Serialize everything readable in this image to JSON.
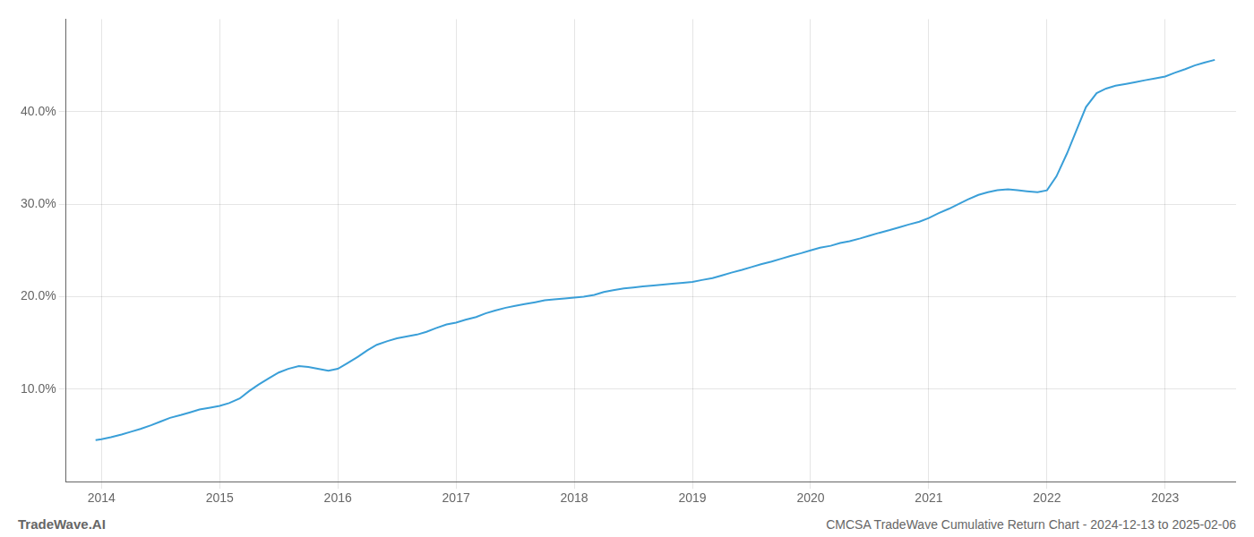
{
  "chart_data": {
    "type": "line",
    "title": "CMCSA TradeWave Cumulative Return Chart - 2024-12-13 to 2025-02-06",
    "annotations": [
      "TradeWave.AI"
    ],
    "x": [
      2013.95,
      2014.0,
      2014.08,
      2014.17,
      2014.25,
      2014.33,
      2014.42,
      2014.5,
      2014.58,
      2014.67,
      2014.75,
      2014.83,
      2014.92,
      2015.0,
      2015.08,
      2015.17,
      2015.25,
      2015.33,
      2015.42,
      2015.5,
      2015.58,
      2015.67,
      2015.75,
      2015.83,
      2015.92,
      2016.0,
      2016.08,
      2016.17,
      2016.25,
      2016.33,
      2016.42,
      2016.5,
      2016.58,
      2016.67,
      2016.75,
      2016.83,
      2016.92,
      2017.0,
      2017.08,
      2017.17,
      2017.25,
      2017.33,
      2017.42,
      2017.5,
      2017.58,
      2017.67,
      2017.75,
      2017.83,
      2017.92,
      2018.0,
      2018.08,
      2018.17,
      2018.25,
      2018.33,
      2018.42,
      2018.5,
      2018.58,
      2018.67,
      2018.75,
      2018.83,
      2018.92,
      2019.0,
      2019.08,
      2019.17,
      2019.25,
      2019.33,
      2019.42,
      2019.5,
      2019.58,
      2019.67,
      2019.75,
      2019.83,
      2019.92,
      2020.0,
      2020.08,
      2020.17,
      2020.25,
      2020.33,
      2020.42,
      2020.5,
      2020.58,
      2020.67,
      2020.75,
      2020.83,
      2020.92,
      2021.0,
      2021.08,
      2021.17,
      2021.25,
      2021.33,
      2021.42,
      2021.5,
      2021.58,
      2021.67,
      2021.75,
      2021.83,
      2021.92,
      2022.0,
      2022.08,
      2022.17,
      2022.25,
      2022.33,
      2022.42,
      2022.5,
      2022.58,
      2022.67,
      2022.75,
      2022.83,
      2022.92,
      2023.0,
      2023.08,
      2023.17,
      2023.25,
      2023.33,
      2023.42
    ],
    "values": [
      4.5,
      4.6,
      4.8,
      5.1,
      5.4,
      5.7,
      6.1,
      6.5,
      6.9,
      7.2,
      7.5,
      7.8,
      8.0,
      8.2,
      8.5,
      9.0,
      9.8,
      10.5,
      11.2,
      11.8,
      12.2,
      12.5,
      12.4,
      12.2,
      12.0,
      12.2,
      12.8,
      13.5,
      14.2,
      14.8,
      15.2,
      15.5,
      15.7,
      15.9,
      16.2,
      16.6,
      17.0,
      17.2,
      17.5,
      17.8,
      18.2,
      18.5,
      18.8,
      19.0,
      19.2,
      19.4,
      19.6,
      19.7,
      19.8,
      19.9,
      20.0,
      20.2,
      20.5,
      20.7,
      20.9,
      21.0,
      21.1,
      21.2,
      21.3,
      21.4,
      21.5,
      21.6,
      21.8,
      22.0,
      22.3,
      22.6,
      22.9,
      23.2,
      23.5,
      23.8,
      24.1,
      24.4,
      24.7,
      25.0,
      25.3,
      25.5,
      25.8,
      26.0,
      26.3,
      26.6,
      26.9,
      27.2,
      27.5,
      27.8,
      28.1,
      28.5,
      29.0,
      29.5,
      30.0,
      30.5,
      31.0,
      31.3,
      31.5,
      31.6,
      31.5,
      31.4,
      31.3,
      31.5,
      33.0,
      35.5,
      38.0,
      40.5,
      42.0,
      42.5,
      42.8,
      43.0,
      43.2,
      43.4,
      43.6,
      43.8,
      44.2,
      44.6,
      45.0,
      45.3,
      45.6
    ],
    "color": "#3a9fd8",
    "xlim": [
      2013.7,
      2023.6
    ],
    "ylim": [
      0,
      50
    ],
    "xticks": [
      2014,
      2015,
      2016,
      2017,
      2018,
      2019,
      2020,
      2021,
      2022,
      2023
    ],
    "yticks": [
      {
        "value": 10.0,
        "label": "10.0%"
      },
      {
        "value": 20.0,
        "label": "20.0%"
      },
      {
        "value": 30.0,
        "label": "30.0%"
      },
      {
        "value": 40.0,
        "label": "40.0%"
      }
    ],
    "grid": true
  }
}
